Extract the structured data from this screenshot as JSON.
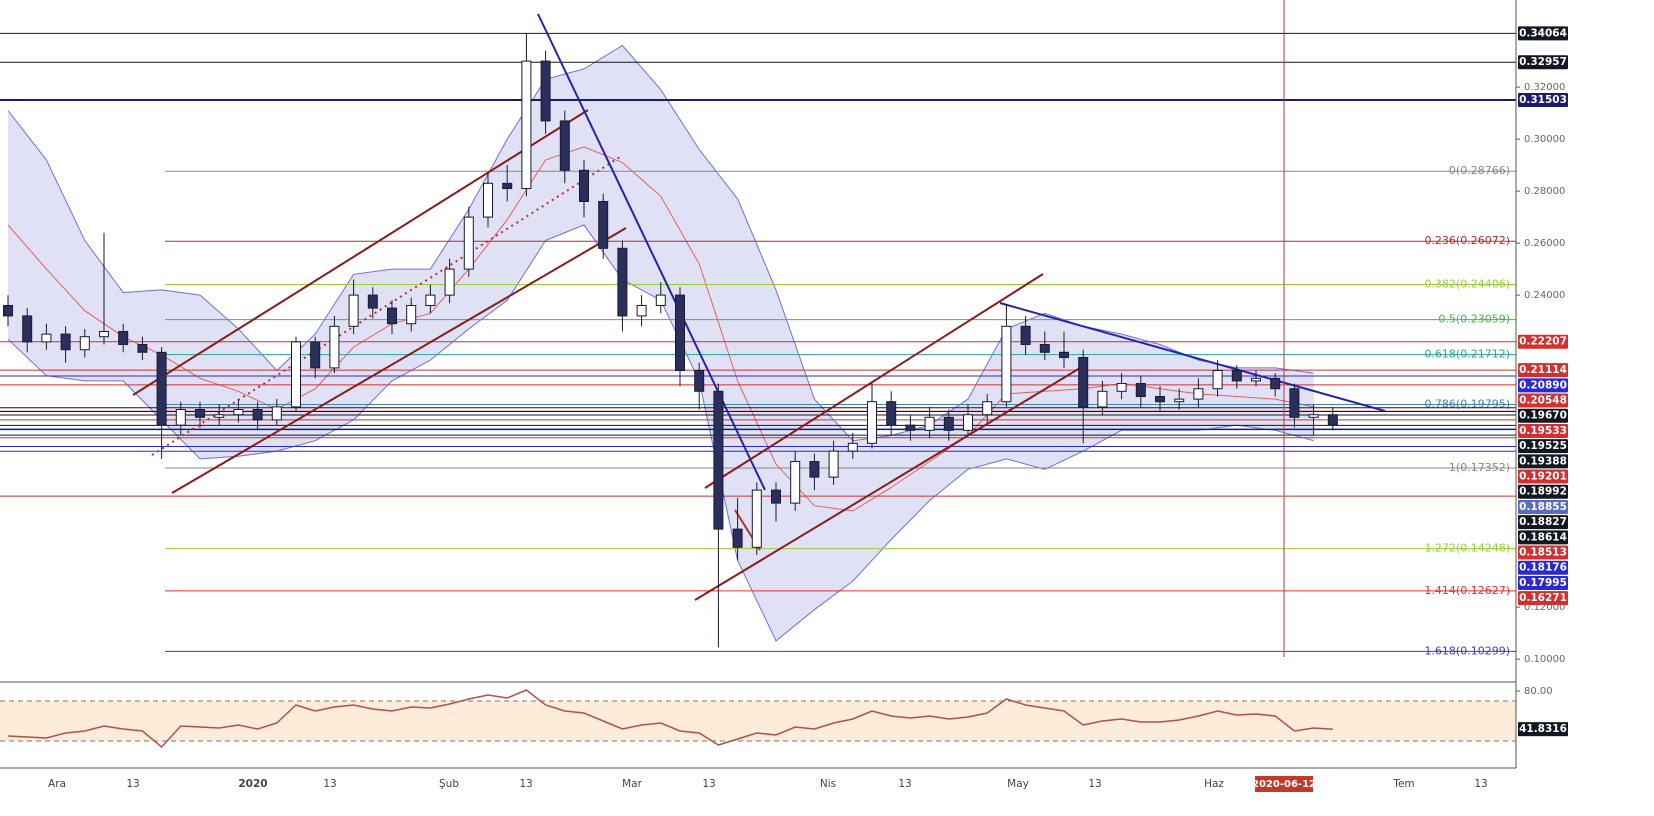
{
  "chart_data": {
    "type": "candlestick",
    "ylim": [
      0.0912,
      0.3535
    ],
    "yticks": [
      {
        "value": 0.32,
        "label": "0.32000"
      },
      {
        "value": 0.3,
        "label": "0.30000"
      },
      {
        "value": 0.28,
        "label": "0.28000"
      },
      {
        "value": 0.26,
        "label": "0.26000"
      },
      {
        "value": 0.24,
        "label": "0.24000"
      },
      {
        "value": 0.12,
        "label": "0.12000"
      },
      {
        "value": 0.1,
        "label": "0.10000"
      }
    ],
    "up_color": "#ffffff",
    "down_color": "#2b2f5e",
    "candles": [
      [
        0.236,
        0.24,
        0.228,
        0.232
      ],
      [
        0.232,
        0.235,
        0.218,
        0.222
      ],
      [
        0.222,
        0.229,
        0.219,
        0.225
      ],
      [
        0.225,
        0.228,
        0.214,
        0.219
      ],
      [
        0.219,
        0.227,
        0.216,
        0.224
      ],
      [
        0.224,
        0.264,
        0.221,
        0.226
      ],
      [
        0.226,
        0.229,
        0.218,
        0.221
      ],
      [
        0.221,
        0.224,
        0.215,
        0.218
      ],
      [
        0.218,
        0.22,
        0.177,
        0.19
      ],
      [
        0.19,
        0.199,
        0.186,
        0.196
      ],
      [
        0.196,
        0.199,
        0.189,
        0.193
      ],
      [
        0.193,
        0.198,
        0.19,
        0.194
      ],
      [
        0.194,
        0.2,
        0.191,
        0.196
      ],
      [
        0.196,
        0.199,
        0.188,
        0.192
      ],
      [
        0.192,
        0.2,
        0.19,
        0.197
      ],
      [
        0.197,
        0.224,
        0.195,
        0.222
      ],
      [
        0.222,
        0.224,
        0.208,
        0.212
      ],
      [
        0.212,
        0.232,
        0.21,
        0.228
      ],
      [
        0.228,
        0.246,
        0.225,
        0.24
      ],
      [
        0.24,
        0.243,
        0.231,
        0.235
      ],
      [
        0.235,
        0.238,
        0.225,
        0.229
      ],
      [
        0.229,
        0.239,
        0.226,
        0.236
      ],
      [
        0.236,
        0.244,
        0.233,
        0.24
      ],
      [
        0.24,
        0.254,
        0.237,
        0.25
      ],
      [
        0.25,
        0.274,
        0.247,
        0.27
      ],
      [
        0.27,
        0.287,
        0.266,
        0.283
      ],
      [
        0.283,
        0.29,
        0.276,
        0.281
      ],
      [
        0.281,
        0.3406,
        0.278,
        0.33
      ],
      [
        0.33,
        0.334,
        0.302,
        0.307
      ],
      [
        0.307,
        0.311,
        0.283,
        0.288
      ],
      [
        0.288,
        0.292,
        0.27,
        0.276
      ],
      [
        0.276,
        0.279,
        0.254,
        0.258
      ],
      [
        0.258,
        0.261,
        0.226,
        0.232
      ],
      [
        0.232,
        0.24,
        0.228,
        0.236
      ],
      [
        0.236,
        0.245,
        0.233,
        0.24
      ],
      [
        0.24,
        0.243,
        0.205,
        0.211
      ],
      [
        0.211,
        0.214,
        0.196,
        0.203
      ],
      [
        0.203,
        0.206,
        0.1045,
        0.15
      ],
      [
        0.15,
        0.162,
        0.138,
        0.143
      ],
      [
        0.143,
        0.168,
        0.14,
        0.165
      ],
      [
        0.165,
        0.168,
        0.153,
        0.16
      ],
      [
        0.16,
        0.18,
        0.157,
        0.176
      ],
      [
        0.176,
        0.179,
        0.165,
        0.17
      ],
      [
        0.17,
        0.184,
        0.167,
        0.18
      ],
      [
        0.18,
        0.187,
        0.177,
        0.183
      ],
      [
        0.183,
        0.206,
        0.181,
        0.199
      ],
      [
        0.199,
        0.203,
        0.186,
        0.19
      ],
      [
        0.19,
        0.194,
        0.184,
        0.188
      ],
      [
        0.188,
        0.197,
        0.185,
        0.193
      ],
      [
        0.193,
        0.196,
        0.184,
        0.188
      ],
      [
        0.188,
        0.198,
        0.186,
        0.194
      ],
      [
        0.194,
        0.202,
        0.191,
        0.199
      ],
      [
        0.199,
        0.2366,
        0.197,
        0.228
      ],
      [
        0.228,
        0.232,
        0.217,
        0.221
      ],
      [
        0.221,
        0.226,
        0.215,
        0.218
      ],
      [
        0.218,
        0.226,
        0.212,
        0.216
      ],
      [
        0.216,
        0.219,
        0.183,
        0.197
      ],
      [
        0.197,
        0.207,
        0.194,
        0.203
      ],
      [
        0.203,
        0.21,
        0.2,
        0.206
      ],
      [
        0.206,
        0.209,
        0.197,
        0.201
      ],
      [
        0.201,
        0.205,
        0.195,
        0.199
      ],
      [
        0.199,
        0.204,
        0.196,
        0.2
      ],
      [
        0.2,
        0.208,
        0.197,
        0.204
      ],
      [
        0.204,
        0.215,
        0.201,
        0.211
      ],
      [
        0.211,
        0.213,
        0.204,
        0.207
      ],
      [
        0.207,
        0.211,
        0.205,
        0.208
      ],
      [
        0.208,
        0.21,
        0.201,
        0.204
      ],
      [
        0.204,
        0.206,
        0.189,
        0.193
      ],
      [
        0.193,
        0.198,
        0.186,
        0.194
      ],
      [
        0.194,
        0.197,
        0.188,
        0.19
      ]
    ],
    "bollinger": {
      "color": "#6f6fd6",
      "fill": "#c9c9ee",
      "basis_color": "#e06060",
      "upper": [
        0.311,
        0.292,
        0.261,
        0.241,
        0.242,
        0.24,
        0.227,
        0.211,
        0.225,
        0.248,
        0.25,
        0.25,
        0.273,
        0.3,
        0.323,
        0.327,
        0.336,
        0.319,
        0.296,
        0.277,
        0.242,
        0.2,
        0.184,
        0.186,
        0.19,
        0.2,
        0.227,
        0.233,
        0.228,
        0.225,
        0.221,
        0.215,
        0.212,
        0.212,
        0.21
      ],
      "basis": [
        0.267,
        0.25,
        0.234,
        0.224,
        0.217,
        0.208,
        0.203,
        0.196,
        0.204,
        0.22,
        0.229,
        0.233,
        0.25,
        0.269,
        0.292,
        0.297,
        0.291,
        0.278,
        0.252,
        0.207,
        0.175,
        0.159,
        0.157,
        0.166,
        0.176,
        0.186,
        0.202,
        0.203,
        0.204,
        0.206,
        0.204,
        0.202,
        0.201,
        0.2,
        0.197
      ],
      "lower": [
        0.223,
        0.209,
        0.207,
        0.207,
        0.192,
        0.177,
        0.178,
        0.18,
        0.184,
        0.192,
        0.207,
        0.215,
        0.227,
        0.238,
        0.261,
        0.267,
        0.246,
        0.238,
        0.207,
        0.138,
        0.107,
        0.119,
        0.13,
        0.146,
        0.161,
        0.173,
        0.177,
        0.173,
        0.18,
        0.188,
        0.188,
        0.188,
        0.19,
        0.188,
        0.184
      ]
    },
    "fibonacci": [
      {
        "value": 0.28766,
        "label": "0(0.28766)",
        "color": "#888888"
      },
      {
        "value": 0.26072,
        "label": "0.236(0.26072)",
        "color": "#b03030"
      },
      {
        "value": 0.24406,
        "label": "0.382(0.24406)",
        "color": "#9acd32"
      },
      {
        "value": 0.23059,
        "label": "0.5(0.23059)",
        "color": "#4caf50"
      },
      {
        "value": 0.21712,
        "label": "0.618(0.21712)",
        "color": "#26a69a"
      },
      {
        "value": 0.19795,
        "label": "0.786(0.19795)",
        "color": "#4682b4"
      },
      {
        "value": 0.17352,
        "label": "1(0.17352)",
        "color": "#888888"
      },
      {
        "value": 0.14248,
        "label": "1.272(0.14248)",
        "color": "#9acd32"
      },
      {
        "value": 0.12627,
        "label": "1.414(0.12627)",
        "color": "#e03030"
      },
      {
        "value": 0.10299,
        "label": "1.618(0.10299)",
        "color": "#3f3fb0"
      }
    ],
    "levels": [
      {
        "value": 0.34064,
        "label": "0.34064",
        "color": "#131722"
      },
      {
        "value": 0.32957,
        "label": "0.32957",
        "color": "#131722"
      },
      {
        "value": 0.31503,
        "label": "0.31503",
        "color": "#1e1a6e"
      },
      {
        "value": 0.22207,
        "label": "0.22207",
        "color": "#d32f2f"
      },
      {
        "value": 0.21114,
        "label": "0.21114",
        "color": "#d32f2f"
      },
      {
        "value": 0.2089,
        "label": "0.20890",
        "color": "#2a2ad0"
      },
      {
        "value": 0.20548,
        "label": "0.20548",
        "color": "#d32f2f"
      },
      {
        "value": 0.1967,
        "label": "0.19670",
        "color": "#131722"
      },
      {
        "value": 0.19533,
        "label": "0.19533",
        "color": "#d32f2f"
      },
      {
        "value": 0.19525,
        "label": "0.19525",
        "color": "#131722"
      },
      {
        "value": 0.19388,
        "label": "0.19388",
        "color": "#131722"
      },
      {
        "value": 0.19201,
        "label": "0.19201",
        "color": "#d32f2f"
      },
      {
        "value": 0.18992,
        "label": "0.18992",
        "color": "#131722"
      },
      {
        "value": 0.18855,
        "label": "0.18855",
        "color": "#5c6bc0"
      },
      {
        "value": 0.18827,
        "label": "0.18827",
        "color": "#131722"
      },
      {
        "value": 0.18614,
        "label": "0.18614",
        "color": "#131722"
      },
      {
        "value": 0.18513,
        "label": "0.18513",
        "color": "#d32f2f"
      },
      {
        "value": 0.18176,
        "label": "0.18176",
        "color": "#2a2ad0"
      },
      {
        "value": 0.17995,
        "label": "0.17995",
        "color": "#2a2ad0"
      },
      {
        "value": 0.16271,
        "label": "0.16271",
        "color": "#d32f2f"
      }
    ],
    "x_labels": [
      "Ara",
      "13",
      "2020",
      "13",
      "Şub",
      "13",
      "Mar",
      "13",
      "Nis",
      "13",
      "May",
      "13",
      "Haz",
      "Tem",
      "13"
    ],
    "cursor_label": "2020-06-12",
    "rsi": {
      "color": "#b05050",
      "band_color": "#fcecd9",
      "ylim": [
        4,
        88
      ],
      "yticks": [
        {
          "value": 80,
          "label": "80.00"
        }
      ],
      "levels": [
        70,
        30
      ],
      "values": [
        35,
        34,
        33,
        38,
        40,
        45,
        42,
        40,
        24,
        45,
        44,
        43,
        46,
        42,
        48,
        66,
        60,
        64,
        66,
        62,
        60,
        64,
        63,
        67,
        72,
        76,
        73,
        81,
        66,
        60,
        58,
        50,
        42,
        46,
        48,
        40,
        38,
        26,
        32,
        38,
        36,
        44,
        42,
        48,
        52,
        60,
        55,
        53,
        55,
        52,
        54,
        58,
        72,
        66,
        63,
        60,
        46,
        50,
        52,
        49,
        49,
        51,
        55,
        60,
        56,
        57,
        55,
        40,
        43,
        41.8316
      ]
    }
  }
}
